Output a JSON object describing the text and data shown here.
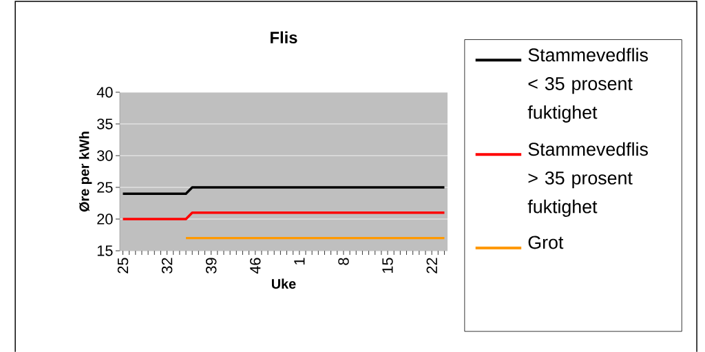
{
  "chart_data": {
    "type": "line",
    "title": "Flis",
    "xlabel": "Uke",
    "ylabel": "Øre per kWh",
    "categories": [
      "25",
      null,
      null,
      null,
      null,
      null,
      null,
      "32",
      null,
      null,
      null,
      null,
      null,
      null,
      "39",
      null,
      null,
      null,
      null,
      null,
      null,
      "46",
      null,
      null,
      null,
      null,
      null,
      null,
      "1",
      null,
      null,
      null,
      null,
      null,
      null,
      "8",
      null,
      null,
      null,
      null,
      null,
      null,
      "15",
      null,
      null,
      null,
      null,
      null,
      null,
      "22",
      null,
      null
    ],
    "series": [
      {
        "name": "Stammevedflis < 35 prosent fuktighet",
        "color": "#000000",
        "values": [
          24,
          24,
          24,
          24,
          24,
          24,
          24,
          24,
          24,
          24,
          24,
          25,
          25,
          25,
          25,
          25,
          25,
          25,
          25,
          25,
          25,
          25,
          25,
          25,
          25,
          25,
          25,
          25,
          25,
          25,
          25,
          25,
          25,
          25,
          25,
          25,
          25,
          25,
          25,
          25,
          25,
          25,
          25,
          25,
          25,
          25,
          25,
          25,
          25,
          25,
          25,
          25
        ]
      },
      {
        "name": "Stammevedflis > 35 prosent fuktighet",
        "color": "#ff0000",
        "values": [
          20,
          20,
          20,
          20,
          20,
          20,
          20,
          20,
          20,
          20,
          20,
          21,
          21,
          21,
          21,
          21,
          21,
          21,
          21,
          21,
          21,
          21,
          21,
          21,
          21,
          21,
          21,
          21,
          21,
          21,
          21,
          21,
          21,
          21,
          21,
          21,
          21,
          21,
          21,
          21,
          21,
          21,
          21,
          21,
          21,
          21,
          21,
          21,
          21,
          21,
          21,
          21
        ]
      },
      {
        "name": "Grot",
        "color": "#ff9900",
        "values": [
          null,
          null,
          null,
          null,
          null,
          null,
          null,
          null,
          null,
          null,
          17,
          17,
          17,
          17,
          17,
          17,
          17,
          17,
          17,
          17,
          17,
          17,
          17,
          17,
          17,
          17,
          17,
          17,
          17,
          17,
          17,
          17,
          17,
          17,
          17,
          17,
          17,
          17,
          17,
          17,
          17,
          17,
          17,
          17,
          17,
          17,
          17,
          17,
          17,
          17,
          17,
          17
        ]
      }
    ],
    "ylim": [
      15,
      40
    ],
    "yticks": [
      15,
      20,
      25,
      30,
      35,
      40
    ],
    "grid": "y",
    "legend": "right",
    "marker": "none",
    "line_style": "solid"
  }
}
